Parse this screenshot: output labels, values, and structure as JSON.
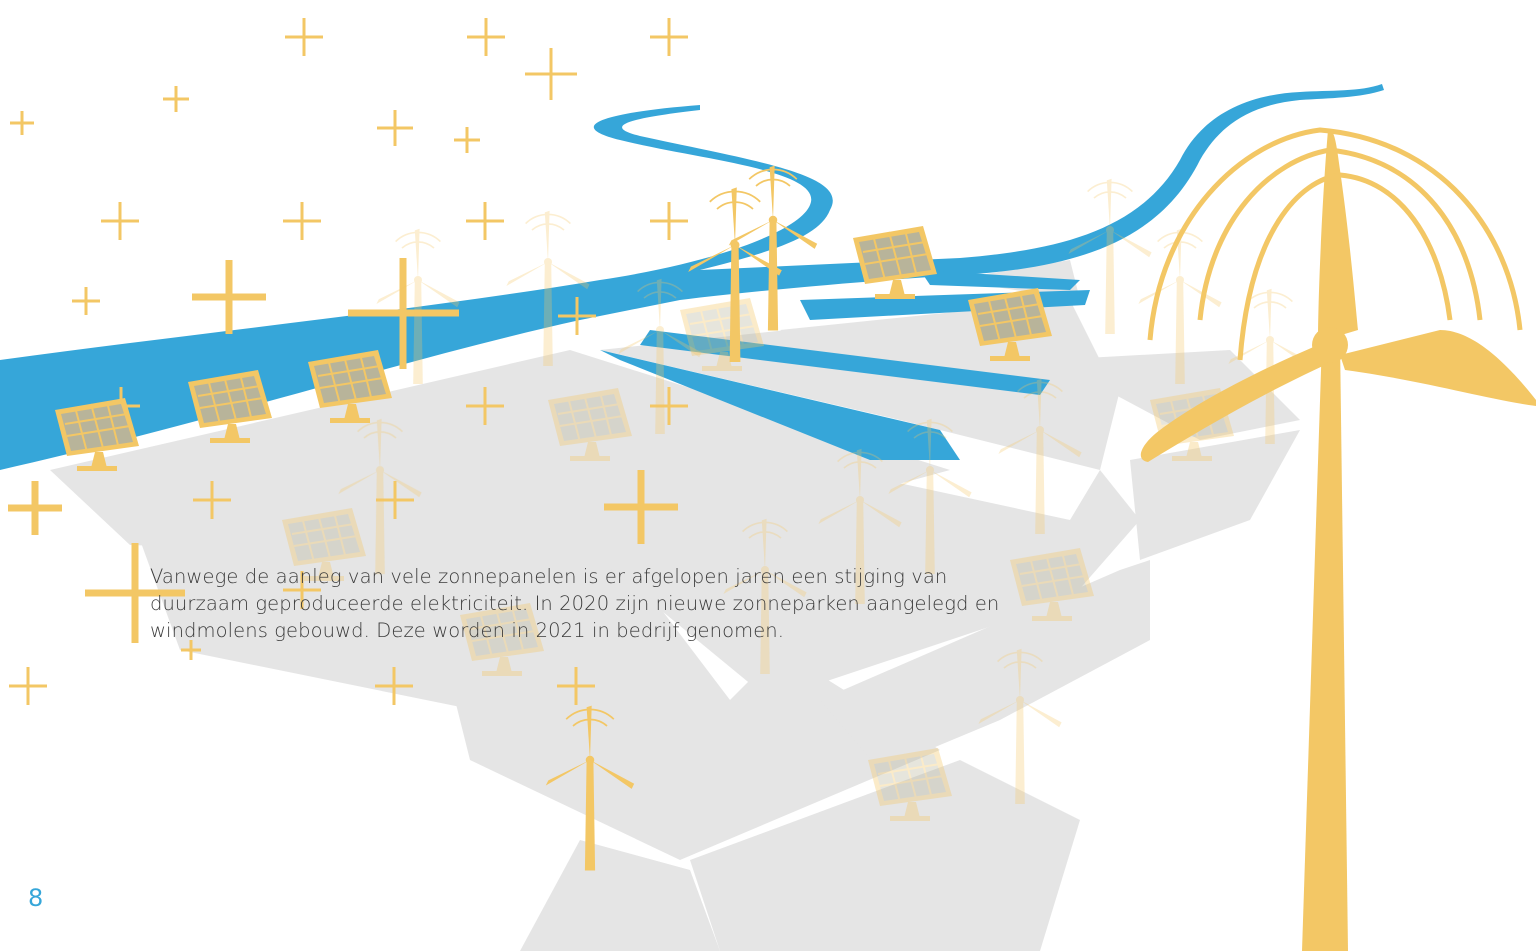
{
  "page": {
    "body_lines": [
      "Vanwege de aanleg van vele zonnepanelen is er afgelopen jaren een stijging van",
      "duurzaam geproduceerde elektriciteit. In 2020 zijn nieuwe zonneparken aangelegd en",
      "windmolens gebouwd. Deze worden in 2021 in bedrijf genomen."
    ],
    "page_number": "8"
  },
  "colors": {
    "river": "#36a6d9",
    "accent": "#f3c765",
    "land": "#e5e5e5",
    "text": "#3a3a3a",
    "page_number": "#36a6d9"
  },
  "illustration": {
    "icons": [
      "river-icon",
      "solar-panel-icon",
      "wind-turbine-icon",
      "sparkle-cross-icon",
      "land-parcel-icon"
    ]
  }
}
